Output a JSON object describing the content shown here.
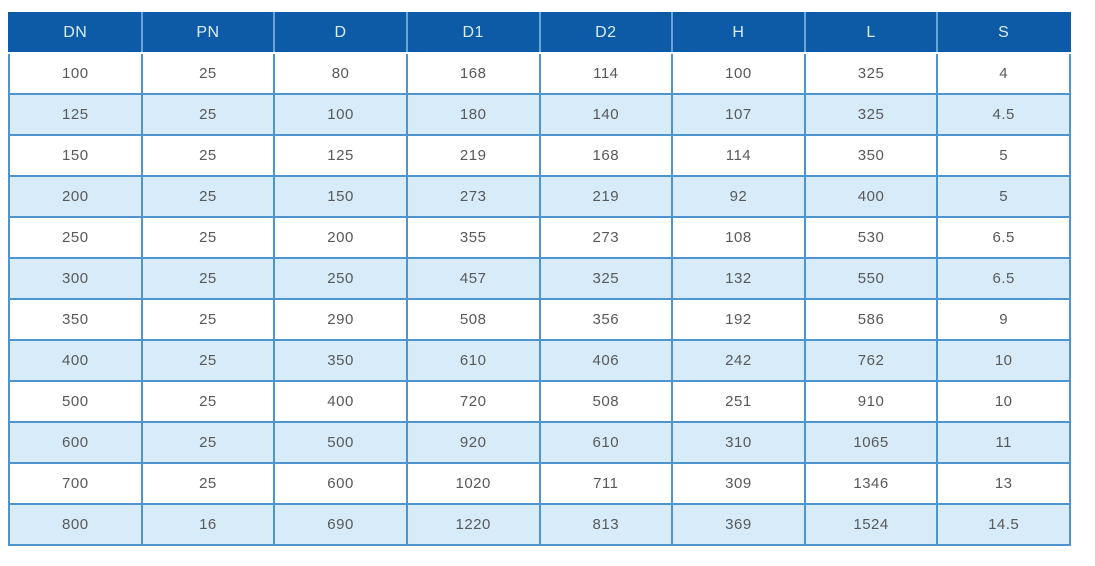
{
  "chart_data": {
    "type": "table",
    "columns": [
      "DN",
      "PN",
      "D",
      "D1",
      "D2",
      "H",
      "L",
      "S"
    ],
    "rows": [
      [
        "100",
        "25",
        "80",
        "168",
        "114",
        "100",
        "325",
        "4"
      ],
      [
        "125",
        "25",
        "100",
        "180",
        "140",
        "107",
        "325",
        "4.5"
      ],
      [
        "150",
        "25",
        "125",
        "219",
        "168",
        "114",
        "350",
        "5"
      ],
      [
        "200",
        "25",
        "150",
        "273",
        "219",
        "92",
        "400",
        "5"
      ],
      [
        "250",
        "25",
        "200",
        "355",
        "273",
        "108",
        "530",
        "6.5"
      ],
      [
        "300",
        "25",
        "250",
        "457",
        "325",
        "132",
        "550",
        "6.5"
      ],
      [
        "350",
        "25",
        "290",
        "508",
        "356",
        "192",
        "586",
        "9"
      ],
      [
        "400",
        "25",
        "350",
        "610",
        "406",
        "242",
        "762",
        "10"
      ],
      [
        "500",
        "25",
        "400",
        "720",
        "508",
        "251",
        "910",
        "10"
      ],
      [
        "600",
        "25",
        "500",
        "920",
        "610",
        "310",
        "1065",
        "11"
      ],
      [
        "700",
        "25",
        "600",
        "1020",
        "711",
        "309",
        "1346",
        "13"
      ],
      [
        "800",
        "16",
        "690",
        "1220",
        "813",
        "369",
        "1524",
        "14.5"
      ]
    ]
  },
  "colors": {
    "header_bg": "#0d5ba6",
    "header_text": "#d9ecf9",
    "row_alt_bg": "#d7ebf8",
    "row_bg": "#ffffff",
    "border": "#4e94ce",
    "cell_text": "#58595b"
  }
}
